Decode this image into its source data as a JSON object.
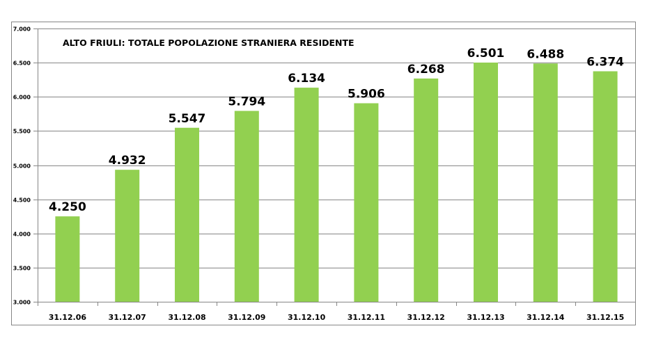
{
  "chart_data": {
    "type": "bar",
    "title": "ALTO FRIULI: TOTALE POPOLAZIONE STRANIERA RESIDENTE",
    "categories": [
      "31.12.06",
      "31.12.07",
      "31.12.08",
      "31.12.09",
      "31.12.10",
      "31.12.11",
      "31.12.12",
      "31.12.13",
      "31.12.14",
      "31.12.15"
    ],
    "values": [
      4250,
      4932,
      5547,
      5794,
      6134,
      5906,
      6268,
      6501,
      6488,
      6374
    ],
    "data_labels": [
      "4.250",
      "4.932",
      "5.547",
      "5.794",
      "6.134",
      "5.906",
      "6.268",
      "6.501",
      "6.488",
      "6.374"
    ],
    "ylim": [
      3000,
      7000
    ],
    "yticks": [
      3000,
      3500,
      4000,
      4500,
      5000,
      5500,
      6000,
      6500,
      7000
    ],
    "ytick_labels": [
      "3.000",
      "3.500",
      "4.000",
      "4.500",
      "5.000",
      "5.500",
      "6.000",
      "6.500",
      "7.000"
    ],
    "xlabel": "",
    "ylabel": "",
    "grid": true,
    "legend": "none",
    "colors": {
      "bar": "#92D050",
      "grid": "#868686",
      "border": "#868686"
    }
  }
}
